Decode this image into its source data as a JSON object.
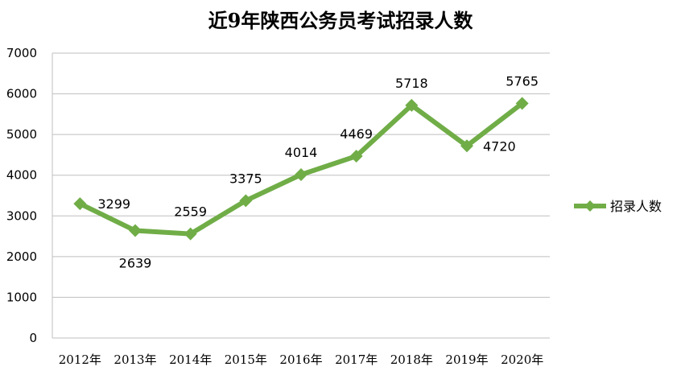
{
  "chart_data": {
    "type": "line",
    "title": "近9年陕西公务员考试招录人数",
    "xlabel": "",
    "ylabel": "",
    "categories": [
      "2012年",
      "2013年",
      "2014年",
      "2015年",
      "2016年",
      "2017年",
      "2018年",
      "2019年",
      "2020年"
    ],
    "series": [
      {
        "name": "招录人数",
        "values": [
          3299,
          2639,
          2559,
          3375,
          4014,
          4469,
          5718,
          4720,
          5765
        ],
        "color": "#70AD47"
      }
    ],
    "ylim": [
      0,
      7000
    ],
    "yticks": [
      0,
      1000,
      2000,
      3000,
      4000,
      5000,
      6000,
      7000
    ],
    "grid": true,
    "legend": "right",
    "marker": "diamond"
  }
}
